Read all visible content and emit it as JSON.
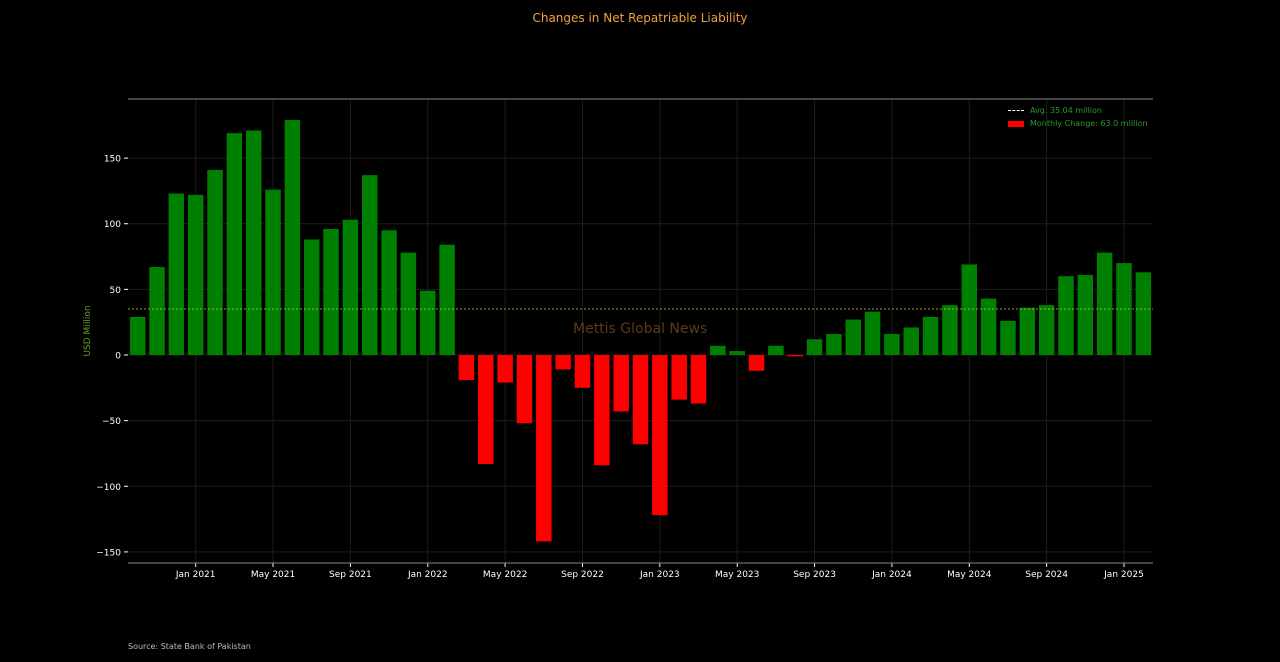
{
  "title": "Changes in Net Repatriable Liability",
  "source": "Source: State Bank of Pakistan",
  "watermark": "Mettis Global News",
  "legend": {
    "avg_label": "Avg. 35.04 million",
    "bar_label": "Monthly Change: 63.0 million"
  },
  "colors": {
    "positive": "#008000",
    "negative": "#ff0000",
    "title": "#f0a040",
    "ylabel": "#6a9a2a",
    "avg_line": "#d4c84a",
    "background": "#000000"
  },
  "chart_data": {
    "type": "bar",
    "title": "Changes in Net Repatriable Liability",
    "ylabel": "USD Million",
    "xlabel": "",
    "ylim": [
      -157,
      195
    ],
    "yticks": [
      -150,
      -100,
      -50,
      0,
      50,
      100,
      150
    ],
    "average": 35.04,
    "grid": true,
    "legend_position": "top-right",
    "x_tick_labels": [
      {
        "index": 3,
        "label": "Jan 2021"
      },
      {
        "index": 7,
        "label": "May 2021"
      },
      {
        "index": 11,
        "label": "Sep 2021"
      },
      {
        "index": 15,
        "label": "Jan 2022"
      },
      {
        "index": 19,
        "label": "May 2022"
      },
      {
        "index": 23,
        "label": "Sep 2022"
      },
      {
        "index": 27,
        "label": "Jan 2023"
      },
      {
        "index": 31,
        "label": "May 2023"
      },
      {
        "index": 35,
        "label": "Sep 2023"
      },
      {
        "index": 39,
        "label": "Jan 2024"
      },
      {
        "index": 43,
        "label": "May 2024"
      },
      {
        "index": 47,
        "label": "Sep 2024"
      },
      {
        "index": 51,
        "label": "Jan 2025"
      }
    ],
    "values": [
      29,
      67,
      123,
      122,
      141,
      169,
      171,
      126,
      179,
      88,
      96,
      103,
      137,
      95,
      78,
      49,
      84,
      -19,
      -83,
      -21,
      -52,
      -142,
      -11,
      -25,
      -84,
      -43,
      -68,
      -122,
      -34,
      -37,
      7,
      3,
      -12,
      7,
      -1,
      12,
      16,
      27,
      33,
      16,
      21,
      29,
      38,
      69,
      43,
      26,
      36,
      38,
      60,
      61,
      78,
      70,
      63
    ]
  }
}
